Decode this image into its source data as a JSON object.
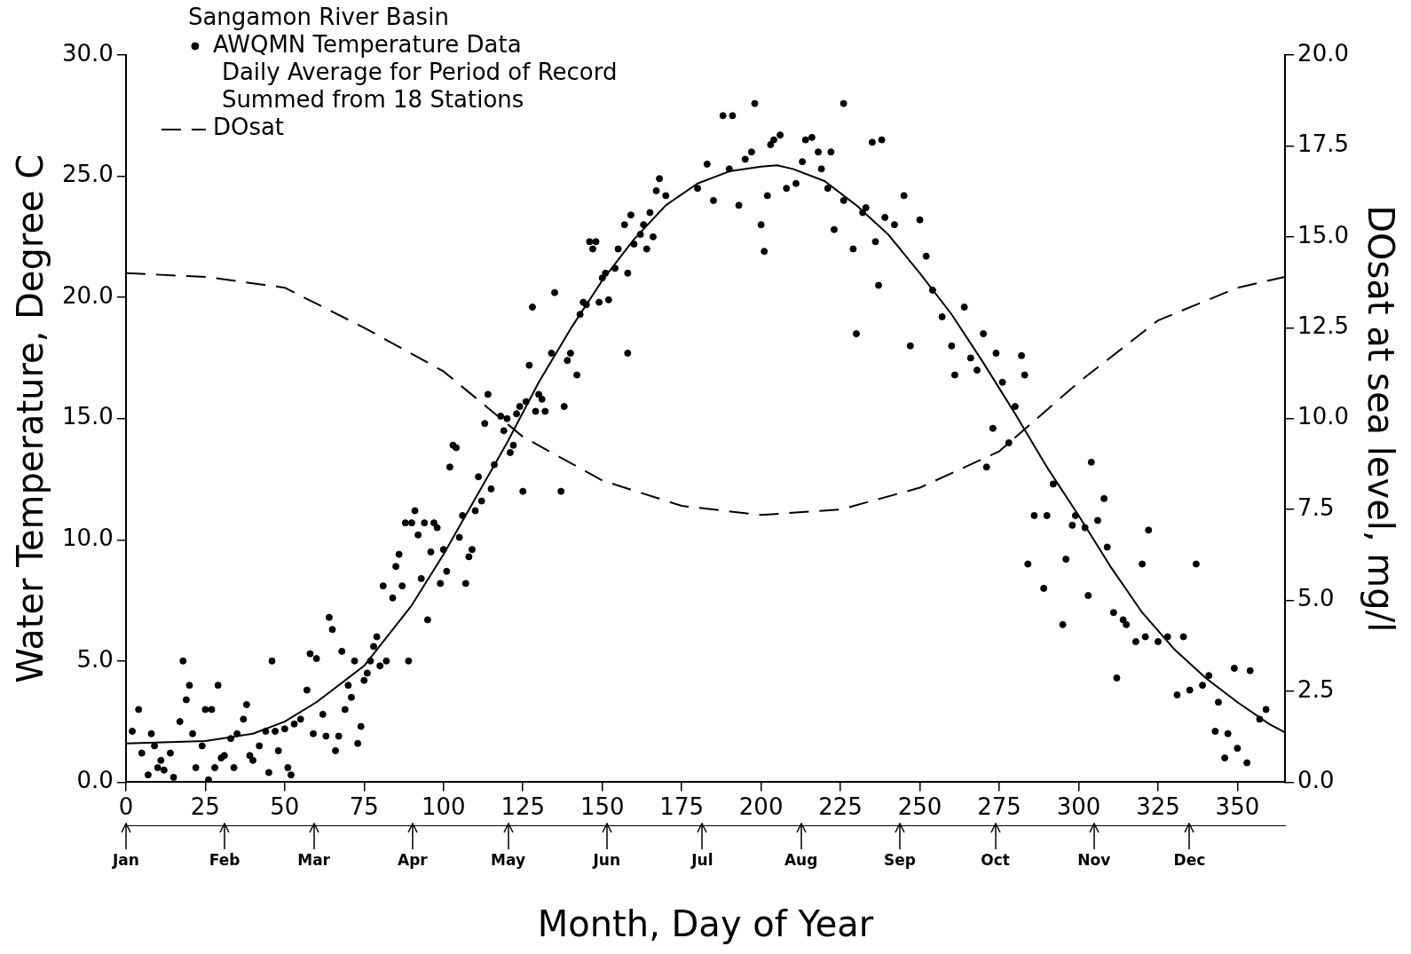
{
  "chart_data": {
    "type": "scatter",
    "title": "Sangamon River Basin",
    "xlabel": "Month, Day of Year",
    "ylabel": "Water Temperature, Degree C",
    "y2label": "DOsat at sea level, mg/l",
    "annotations": [
      "Daily Average for Period of Record",
      "Summed from 18 Stations"
    ],
    "x2lim": [
      "--01-01",
      "--12-31"
    ],
    "x2ticks": [
      {
        "value": "--01-01",
        "label": "Jan"
      },
      {
        "value": "--02-01",
        "label": "Feb"
      },
      {
        "value": "--03-01",
        "label": "Mar"
      },
      {
        "value": "--04-01",
        "label": "Apr"
      },
      {
        "value": "--05-01",
        "label": "May"
      },
      {
        "value": "--06-01",
        "label": "Jun"
      },
      {
        "value": "--07-01",
        "label": "Jul"
      },
      {
        "value": "--08-01",
        "label": "Aug"
      },
      {
        "value": "--09-01",
        "label": "Sep"
      },
      {
        "value": "--10-01",
        "label": "Oct"
      },
      {
        "value": "--11-01",
        "label": "Nov"
      },
      {
        "value": "--12-01",
        "label": "Dec"
      }
    ],
    "xlim": [
      0,
      365
    ],
    "xticks": [
      0,
      25,
      50,
      75,
      100,
      125,
      150,
      175,
      200,
      225,
      250,
      275,
      300,
      325,
      350
    ],
    "ylim": [
      0,
      30
    ],
    "yticks": [
      {
        "value": 0,
        "label": "0.0"
      },
      {
        "value": 5,
        "label": "5.0"
      },
      {
        "value": 10,
        "label": "10.0"
      },
      {
        "value": 15,
        "label": "15.0"
      },
      {
        "value": 20,
        "label": "20.0"
      },
      {
        "value": 25,
        "label": "25.0"
      },
      {
        "value": 30,
        "label": "30.0"
      }
    ],
    "y2lim": [
      0,
      20
    ],
    "y2ticks": [
      {
        "value": 0,
        "label": "0.0"
      },
      2.5,
      {
        "value": 5,
        "label": "5.0"
      },
      7.5,
      {
        "value": 10,
        "label": "10.0"
      },
      12.5,
      {
        "value": 15,
        "label": "15.0"
      },
      17.5,
      {
        "value": 20,
        "label": "20.0"
      }
    ],
    "grid": false,
    "legend": "top left",
    "series": [
      {
        "name": "AWQMN Temperature Data",
        "marker": "circle",
        "color": "#000000",
        "x": [
          2,
          4,
          5,
          7,
          8,
          9,
          10,
          11,
          12,
          14,
          15,
          17,
          18,
          19,
          20,
          21,
          22,
          24,
          25,
          26,
          27,
          28,
          29,
          30,
          31,
          33,
          34,
          35,
          37,
          38,
          39,
          40,
          42,
          44,
          45,
          46,
          47,
          48,
          50,
          51,
          52,
          53,
          55,
          57,
          58,
          59,
          60,
          62,
          63,
          64,
          65,
          66,
          67,
          68,
          69,
          70,
          71,
          72,
          73,
          74,
          75,
          76,
          77,
          78,
          79,
          80,
          81,
          82,
          84,
          85,
          86,
          87,
          88,
          89,
          90,
          91,
          92,
          93,
          94,
          95,
          96,
          97,
          98,
          99,
          100,
          101,
          102,
          103,
          104,
          105,
          106,
          107,
          108,
          109,
          110,
          111,
          112,
          113,
          114,
          115,
          116,
          118,
          119,
          120,
          121,
          122,
          123,
          124,
          125,
          126,
          127,
          128,
          129,
          130,
          131,
          132,
          134,
          135,
          137,
          138,
          139,
          140,
          142,
          143,
          144,
          145,
          146,
          147,
          148,
          149,
          150,
          151,
          152,
          154,
          155,
          158,
          157,
          158,
          159,
          160,
          162,
          163,
          164,
          165,
          166,
          167,
          168,
          170,
          180,
          183,
          185,
          188,
          190,
          191,
          193,
          195,
          197,
          198,
          200,
          201,
          202,
          203,
          204,
          206,
          208,
          211,
          213,
          214,
          216,
          218,
          219,
          221,
          222,
          226,
          223,
          226,
          229,
          230,
          232,
          233,
          235,
          238,
          236,
          237,
          239,
          242,
          245,
          247,
          250,
          252,
          254,
          257,
          260,
          261,
          264,
          266,
          268,
          270,
          271,
          273,
          274,
          276,
          278,
          280,
          282,
          283,
          284,
          286,
          289,
          290,
          292,
          295,
          296,
          298,
          299,
          302,
          303,
          304,
          306,
          308,
          309,
          311,
          312,
          314,
          315,
          318,
          320,
          321,
          322,
          325,
          328,
          331,
          333,
          335,
          337,
          339,
          341,
          343,
          344,
          346,
          347,
          349,
          350,
          353,
          354,
          357,
          359
        ],
        "values": [
          2.1,
          3.0,
          1.2,
          0.3,
          2.0,
          1.5,
          0.6,
          0.9,
          0.5,
          1.2,
          0.2,
          2.5,
          5.0,
          3.4,
          4.0,
          2.0,
          0.6,
          1.5,
          3.0,
          0.1,
          3.0,
          0.6,
          4.0,
          1.0,
          1.1,
          1.8,
          0.6,
          2.0,
          2.6,
          3.2,
          1.1,
          0.9,
          1.5,
          2.1,
          0.4,
          5.0,
          2.1,
          1.3,
          2.2,
          0.6,
          0.3,
          2.4,
          2.6,
          3.8,
          5.3,
          2.0,
          5.1,
          2.8,
          1.9,
          6.8,
          6.3,
          1.3,
          1.9,
          5.4,
          3.0,
          4.0,
          3.5,
          5.0,
          1.6,
          2.3,
          4.2,
          4.5,
          5.0,
          5.6,
          6.0,
          4.8,
          8.1,
          5.0,
          7.6,
          8.9,
          9.4,
          8.1,
          10.7,
          5.0,
          10.7,
          11.2,
          10.2,
          8.4,
          10.7,
          6.7,
          9.5,
          10.7,
          10.5,
          8.2,
          9.6,
          8.7,
          13.0,
          13.9,
          13.8,
          10.1,
          11.0,
          8.2,
          9.3,
          9.6,
          11.2,
          12.6,
          11.6,
          14.8,
          16.0,
          12.1,
          13.1,
          15.1,
          14.5,
          15.0,
          13.6,
          13.9,
          15.2,
          15.5,
          12.0,
          15.7,
          17.2,
          19.6,
          15.3,
          16.0,
          15.8,
          15.3,
          17.7,
          20.2,
          12.0,
          15.5,
          17.4,
          17.7,
          16.8,
          19.3,
          19.8,
          19.7,
          22.3,
          22.0,
          22.3,
          19.8,
          20.8,
          21.0,
          19.9,
          21.2,
          22.0,
          17.7,
          23.0,
          21.0,
          23.4,
          22.2,
          22.6,
          23.0,
          22.0,
          23.5,
          22.5,
          24.4,
          24.9,
          24.2,
          24.5,
          25.5,
          24.0,
          27.5,
          25.3,
          27.5,
          23.8,
          25.7,
          26.0,
          28.0,
          23.0,
          21.9,
          24.2,
          26.3,
          26.5,
          26.7,
          24.5,
          24.7,
          25.6,
          26.5,
          26.6,
          26.0,
          25.3,
          24.5,
          26.0,
          28.0,
          22.8,
          24.0,
          22.0,
          18.5,
          23.5,
          23.7,
          26.4,
          26.5,
          22.3,
          20.5,
          23.3,
          23.0,
          24.2,
          18.0,
          23.2,
          21.7,
          20.3,
          19.2,
          18.0,
          16.8,
          19.6,
          17.5,
          17.0,
          18.5,
          13.0,
          14.6,
          17.7,
          16.5,
          14.0,
          15.5,
          17.6,
          16.8,
          9.0,
          11.0,
          8.0,
          11.0,
          12.3,
          6.5,
          9.2,
          10.6,
          11.0,
          10.5,
          7.7,
          13.2,
          10.8,
          11.7,
          9.7,
          7.0,
          4.3,
          6.7,
          6.5,
          5.8,
          9.0,
          6.0,
          10.4,
          5.8,
          6.0,
          3.6,
          6.0,
          3.8,
          9.0,
          4.0,
          4.4,
          2.1,
          3.3,
          1.0,
          2.0,
          4.7,
          1.4,
          0.8,
          4.6,
          2.6,
          3.0
        ]
      },
      {
        "type": "line",
        "line_style": "solid",
        "color": "#000000",
        "x": [
          0,
          25,
          40,
          50,
          60,
          75,
          90,
          100,
          110,
          120,
          130,
          140,
          150,
          160,
          170,
          180,
          190,
          200,
          205,
          210,
          220,
          230,
          240,
          250,
          260,
          270,
          280,
          290,
          300,
          310,
          320,
          330,
          340,
          350,
          360,
          365
        ],
        "values": [
          1.6,
          1.7,
          2.0,
          2.5,
          3.3,
          4.8,
          7.3,
          9.4,
          11.7,
          14.0,
          16.5,
          18.7,
          20.7,
          22.4,
          23.8,
          24.7,
          25.2,
          25.4,
          25.45,
          25.3,
          24.8,
          23.8,
          22.6,
          21.0,
          19.3,
          17.3,
          15.2,
          13.0,
          11.0,
          8.9,
          7.0,
          5.5,
          4.3,
          3.3,
          2.4,
          2.05
        ]
      },
      {
        "name": "DOsat",
        "type": "line",
        "axis": "y2",
        "line_style": "dashed",
        "color": "#000000",
        "x": [
          0,
          25,
          50,
          75,
          100,
          125,
          150,
          175,
          200,
          225,
          250,
          275,
          300,
          325,
          350,
          365
        ],
        "values": [
          14.0,
          13.9,
          13.6,
          12.5,
          11.3,
          9.5,
          8.3,
          7.6,
          7.35,
          7.5,
          8.1,
          9.1,
          11.0,
          12.7,
          13.6,
          13.9
        ]
      }
    ]
  }
}
